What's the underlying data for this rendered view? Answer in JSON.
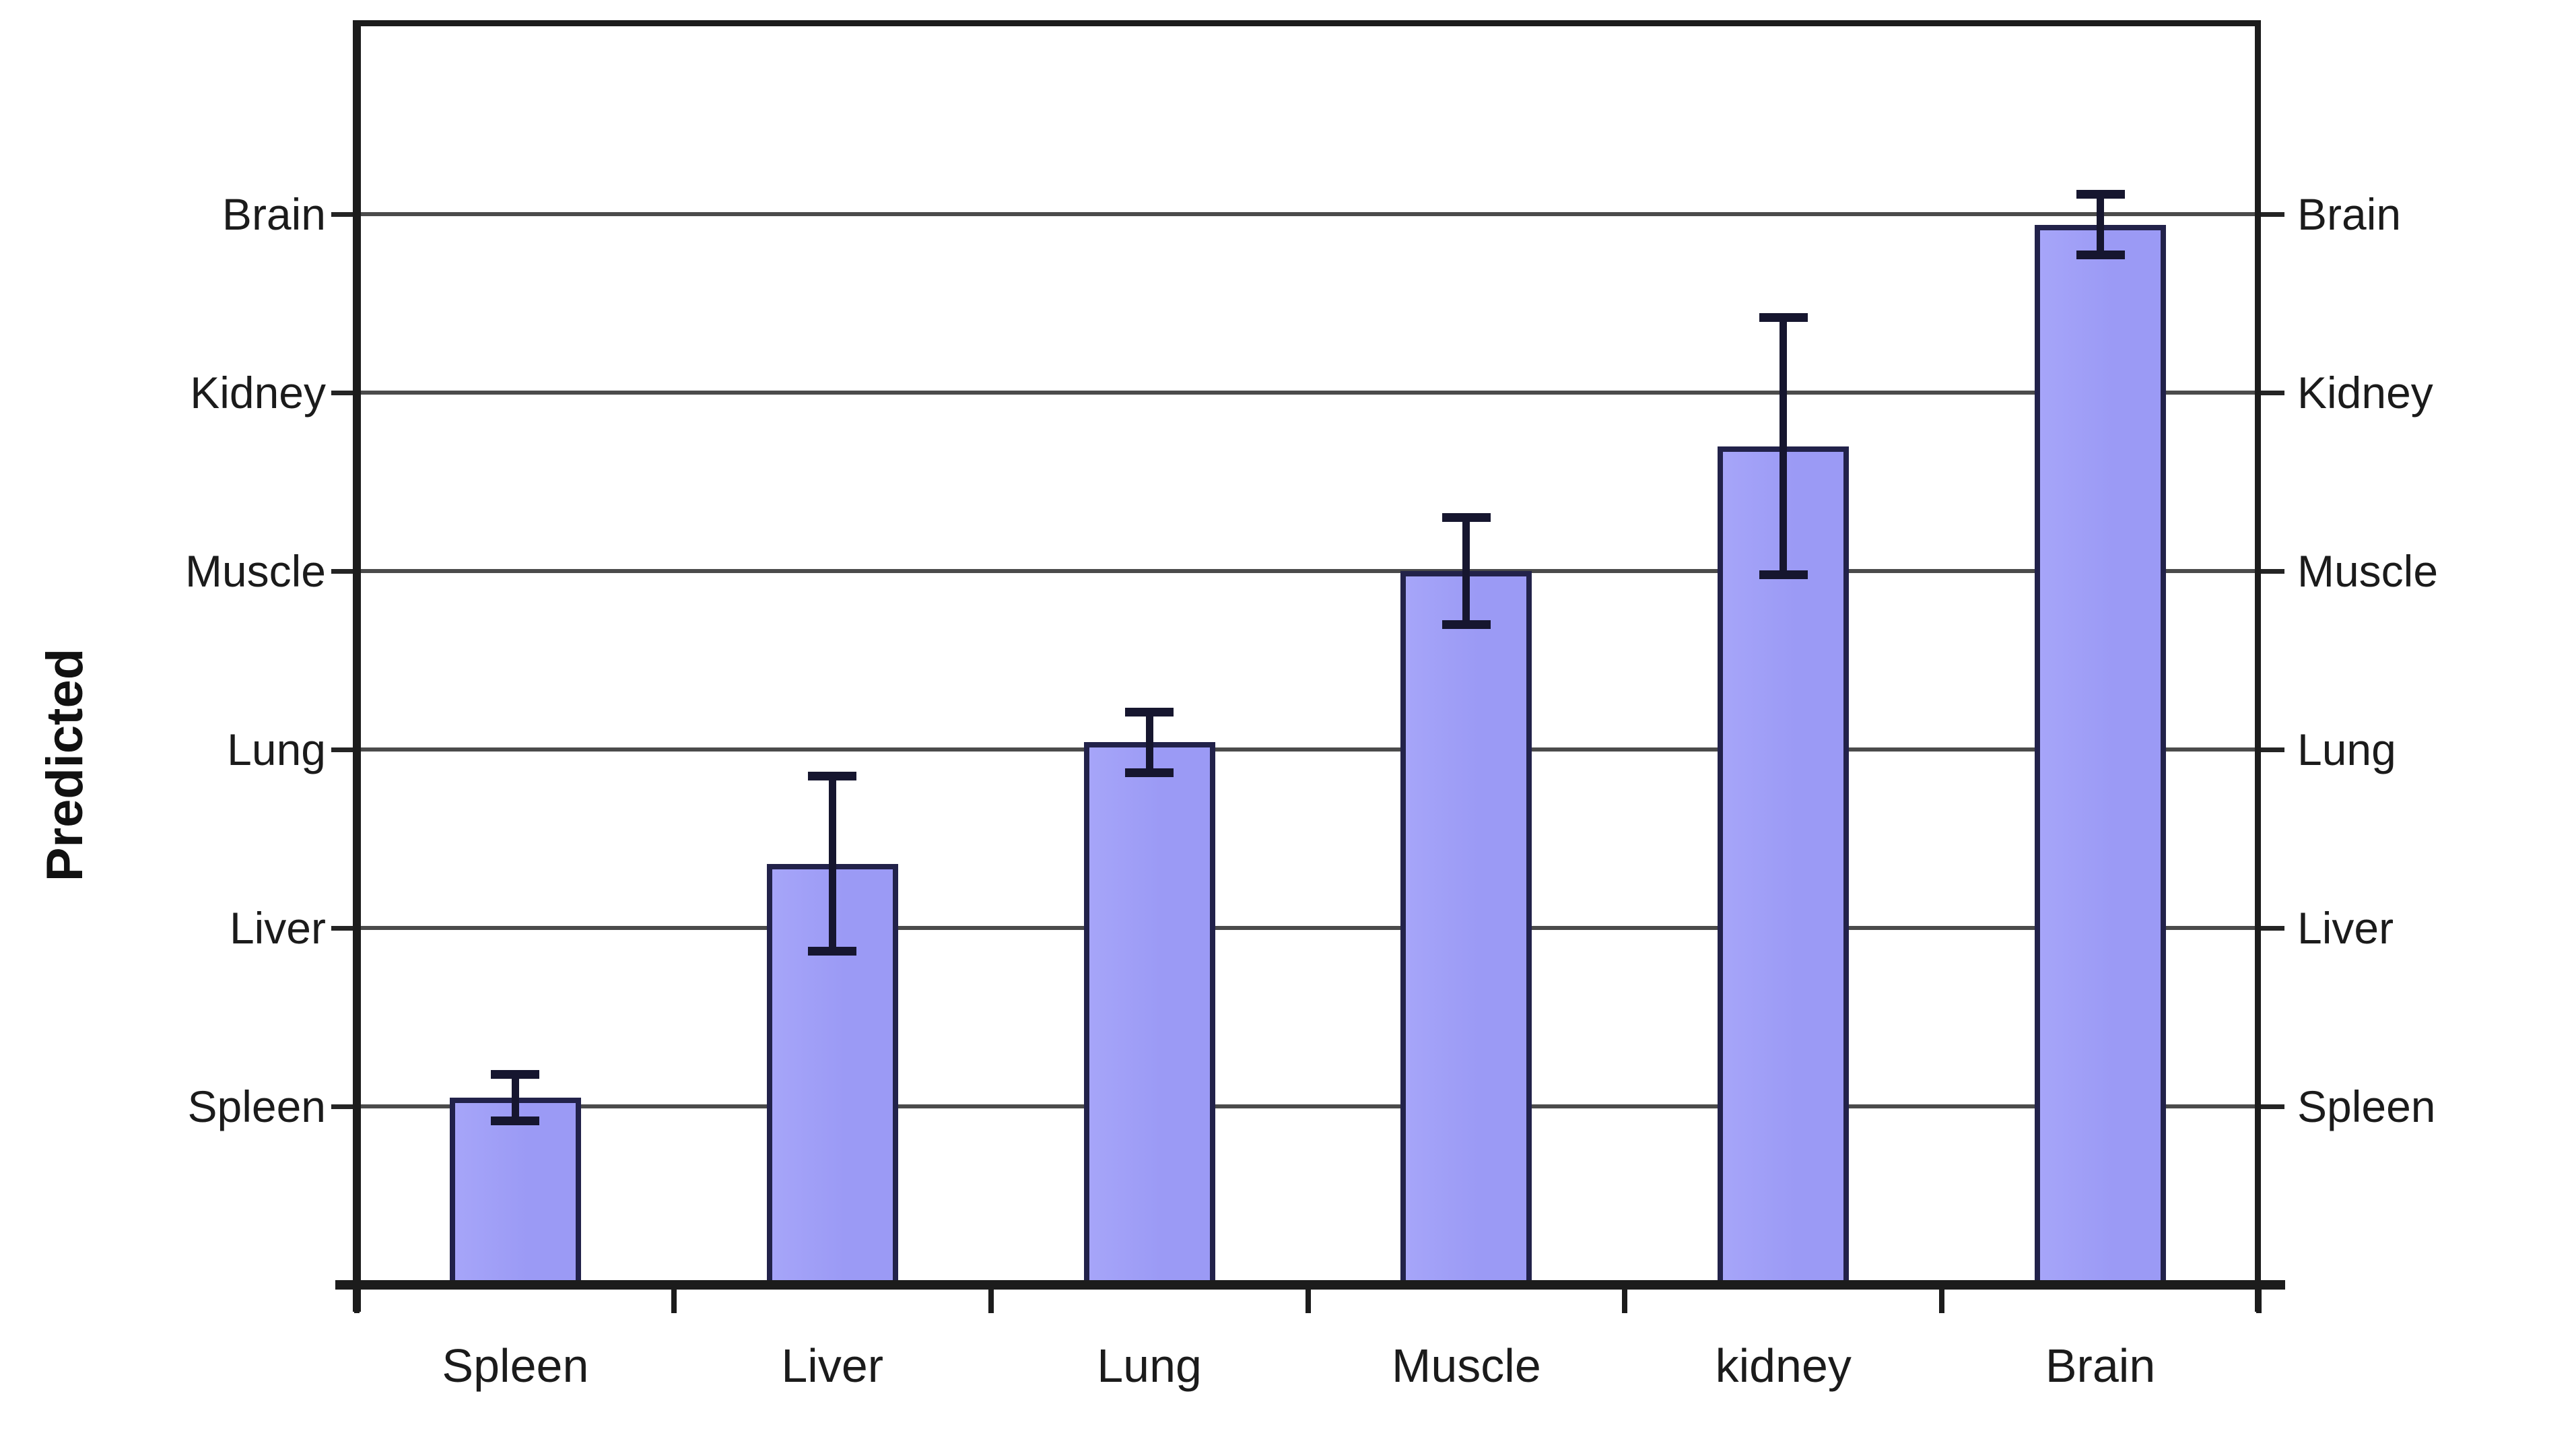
{
  "chart_data": {
    "type": "bar",
    "title": "",
    "xlabel": "",
    "ylabel": "Predicted",
    "categories": [
      "Spleen",
      "Liver",
      "Lung",
      "Muscle",
      "kidney",
      "Brain"
    ],
    "values": [
      1.05,
      2.36,
      3.04,
      4.0,
      4.7,
      5.94
    ],
    "errors": [
      0.13,
      0.49,
      0.17,
      0.3,
      0.72,
      0.17
    ],
    "series_note": "y axis is categorical: bar height read against tissue gridlines",
    "y_axis": {
      "type": "categorical",
      "tick_values": [
        1,
        2,
        3,
        4,
        5,
        6
      ],
      "tick_labels": [
        "Spleen",
        "Liver",
        "Lung",
        "Muscle",
        "Kidney",
        "Brain"
      ],
      "mirrored_right_labels": [
        "Spleen",
        "Liver",
        "Lung",
        "Muscle",
        "Kidney",
        "Brain"
      ],
      "ylim": [
        0,
        7.08
      ]
    },
    "grid": true,
    "legend": "none",
    "colors": {
      "bar_fill": "#9b9af5",
      "bar_fill_edge_light": "#a6a5f9",
      "bar_border": "#22224a",
      "gridline": "#4b4b4b",
      "axis": "#1c1c1c",
      "error_bar": "#16162f",
      "text": "#1b1b1b",
      "background": "#ffffff"
    }
  }
}
